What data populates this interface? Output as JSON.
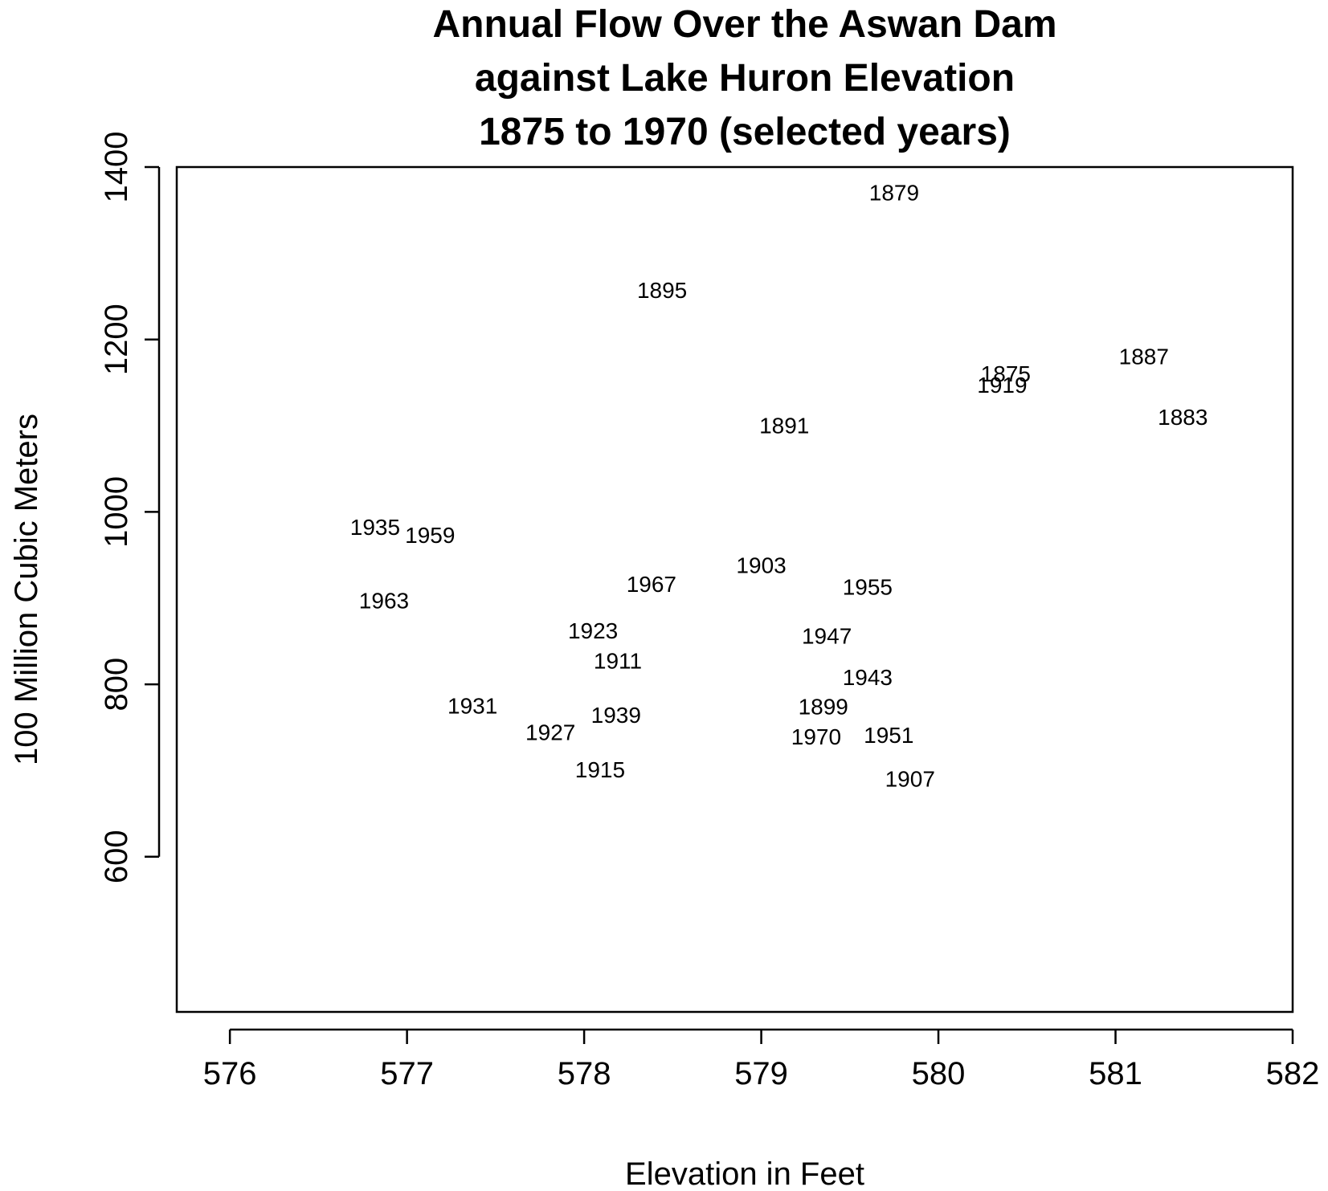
{
  "chart_data": {
    "type": "scatter",
    "title_lines": [
      "Annual Flow Over the Aswan Dam",
      "against Lake Huron Elevation",
      "1875 to 1970 (selected years)"
    ],
    "xlabel": "Elevation in Feet",
    "ylabel": "100 Million Cubic Meters",
    "xlim": [
      575.7,
      582
    ],
    "ylim": [
      420,
      1400
    ],
    "x_ticks": [
      576,
      577,
      578,
      579,
      580,
      581,
      582
    ],
    "y_ticks": [
      600,
      800,
      1000,
      1200,
      1400
    ],
    "grid": false,
    "marker": "text-label",
    "points": [
      {
        "label": "1875",
        "x": 580.38,
        "y": 1160
      },
      {
        "label": "1879",
        "x": 579.75,
        "y": 1370
      },
      {
        "label": "1883",
        "x": 581.38,
        "y": 1110
      },
      {
        "label": "1887",
        "x": 581.16,
        "y": 1180
      },
      {
        "label": "1891",
        "x": 579.13,
        "y": 1100
      },
      {
        "label": "1895",
        "x": 578.44,
        "y": 1257
      },
      {
        "label": "1899",
        "x": 579.35,
        "y": 774
      },
      {
        "label": "1903",
        "x": 579.0,
        "y": 938
      },
      {
        "label": "1907",
        "x": 579.84,
        "y": 690
      },
      {
        "label": "1911",
        "x": 578.19,
        "y": 827
      },
      {
        "label": "1915",
        "x": 578.09,
        "y": 701
      },
      {
        "label": "1919",
        "x": 580.36,
        "y": 1147
      },
      {
        "label": "1923",
        "x": 578.05,
        "y": 862
      },
      {
        "label": "1927",
        "x": 577.81,
        "y": 744
      },
      {
        "label": "1931",
        "x": 577.37,
        "y": 775
      },
      {
        "label": "1935",
        "x": 576.82,
        "y": 982
      },
      {
        "label": "1939",
        "x": 578.18,
        "y": 764
      },
      {
        "label": "1943",
        "x": 579.6,
        "y": 808
      },
      {
        "label": "1947",
        "x": 579.37,
        "y": 856
      },
      {
        "label": "1951",
        "x": 579.72,
        "y": 741
      },
      {
        "label": "1955",
        "x": 579.6,
        "y": 913
      },
      {
        "label": "1959",
        "x": 577.13,
        "y": 973
      },
      {
        "label": "1963",
        "x": 576.87,
        "y": 897
      },
      {
        "label": "1967",
        "x": 578.38,
        "y": 916
      },
      {
        "label": "1970",
        "x": 579.31,
        "y": 739
      }
    ]
  }
}
